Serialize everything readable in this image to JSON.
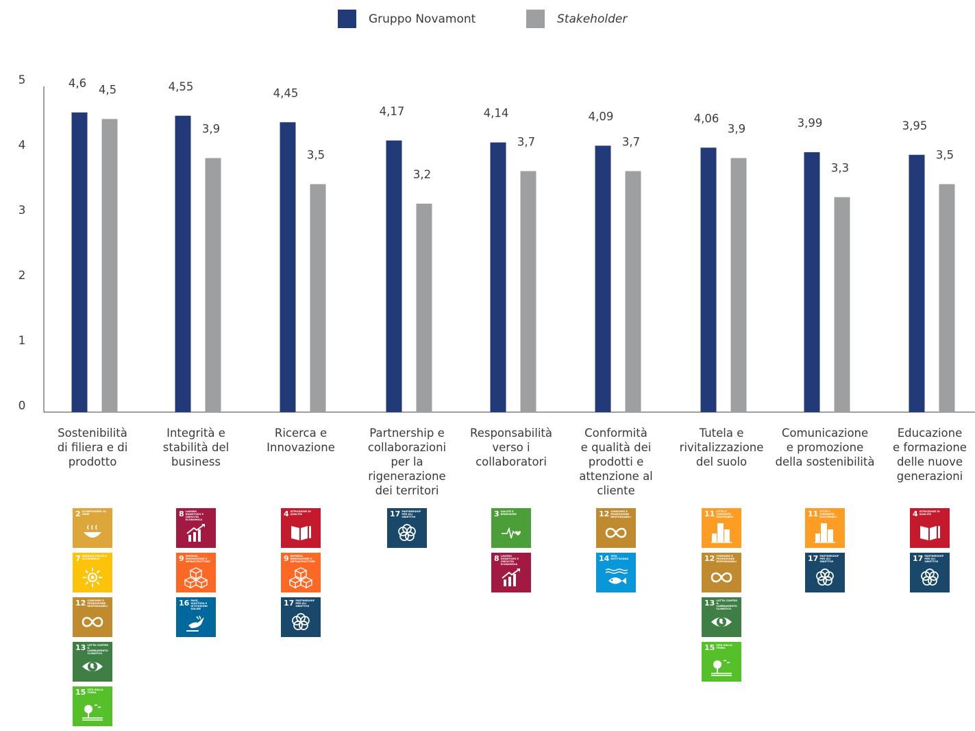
{
  "legend": [
    {
      "name": "Gruppo Novamont",
      "color": "#233a78",
      "italic": false
    },
    {
      "name": "Stakeholder",
      "color": "#9d9fa1",
      "italic": true
    }
  ],
  "chart_data": {
    "type": "bar",
    "title": "",
    "xlabel": "",
    "ylabel": "",
    "ylim": [
      0,
      5
    ],
    "yticks": [
      "0",
      "1",
      "2",
      "3",
      "4",
      "5"
    ],
    "grid": false,
    "legend_position": "top-center",
    "categories": [
      "Sostenibilità di filiera e di prodotto",
      "Integrità e stabilità del business",
      "Ricerca e Innovazione",
      "Partnership e collaborazioni per la rigenerazione dei territori",
      "Responsabilità verso i collaboratori",
      "Conformità e qualità dei prodotti e attenzione al cliente",
      "Tutela e rivitalizzazione del suolo",
      "Comunicazione e promozione della sostenibilità",
      "Educazione e formazione delle nuove generazioni"
    ],
    "category_lines": [
      [
        "Sostenibilità",
        "di filiera e di",
        "prodotto"
      ],
      [
        "Integrità e",
        "stabilità del",
        "business"
      ],
      [
        "Ricerca e",
        "Innovazione"
      ],
      [
        "Partnership e",
        "collaborazioni",
        "per la",
        "rigenerazione",
        "dei territori"
      ],
      [
        "Responsabilità",
        "verso i",
        "collaboratori"
      ],
      [
        "Conformità",
        "e qualità dei",
        "prodotti e",
        "attenzione al",
        "cliente"
      ],
      [
        "Tutela e",
        "rivitalizzazione",
        "del suolo"
      ],
      [
        "Comunicazione",
        "e promozione",
        "della sostenibilità"
      ],
      [
        "Educazione",
        "e formazione",
        "delle nuove",
        "generazioni"
      ]
    ],
    "series": [
      {
        "name": "Gruppo Novamont",
        "color": "#233a78",
        "values": [
          4.6,
          4.55,
          4.45,
          4.17,
          4.14,
          4.09,
          4.06,
          3.99,
          3.95
        ],
        "labels": [
          "4,6",
          "4,55",
          "4,45",
          "4,17",
          "4,14",
          "4,09",
          "4,06",
          "3,99",
          "3,95"
        ]
      },
      {
        "name": "Stakeholder",
        "color": "#9d9fa1",
        "values": [
          4.5,
          3.9,
          3.5,
          3.2,
          3.7,
          3.7,
          3.9,
          3.3,
          3.5
        ],
        "labels": [
          "4,5",
          "3,9",
          "3,5",
          "3,2",
          "3,7",
          "3,7",
          "3,9",
          "3,3",
          "3,5"
        ]
      }
    ]
  },
  "sdg_goals": {
    "2": {
      "number": "2",
      "title": "Sconfiggere la fame",
      "color": "#dda63a",
      "icon": "bowl-icon"
    },
    "3": {
      "number": "3",
      "title": "Salute e benessere",
      "color": "#4c9f38",
      "icon": "heartbeat-icon"
    },
    "4": {
      "number": "4",
      "title": "Istruzione di qualità",
      "color": "#c5192d",
      "icon": "book-icon"
    },
    "7": {
      "number": "7",
      "title": "Energia pulita e accessibile",
      "color": "#fcc30b",
      "icon": "sun-icon"
    },
    "8": {
      "number": "8",
      "title": "Lavoro dignitoso e crescita economica",
      "color": "#a21942",
      "icon": "growth-chart-icon"
    },
    "9": {
      "number": "9",
      "title": "Imprese, innovazione e infrastrutture",
      "color": "#fd6925",
      "icon": "cubes-icon"
    },
    "11": {
      "number": "11",
      "title": "Città e comunità sostenibili",
      "color": "#fd9d24",
      "icon": "city-icon"
    },
    "12": {
      "number": "12",
      "title": "Consumo e produzione responsabili",
      "color": "#bf8b2e",
      "icon": "infinity-icon"
    },
    "13": {
      "number": "13",
      "title": "Lotta contro il cambiamento climatico",
      "color": "#3f7e44",
      "icon": "eye-globe-icon"
    },
    "14": {
      "number": "14",
      "title": "Vita sott'acqua",
      "color": "#0a97d9",
      "icon": "fish-icon"
    },
    "15": {
      "number": "15",
      "title": "Vita sulla terra",
      "color": "#56c02b",
      "icon": "tree-icon"
    },
    "16": {
      "number": "16",
      "title": "Pace, giustizia e istituzioni solide",
      "color": "#00689d",
      "icon": "dove-icon"
    },
    "17": {
      "number": "17",
      "title": "Partnership per gli obiettivi",
      "color": "#19486a",
      "icon": "rings-icon"
    }
  },
  "sdg_by_category": [
    [
      "2",
      "7",
      "12",
      "13",
      "15"
    ],
    [
      "8",
      "9",
      "16"
    ],
    [
      "4",
      "9",
      "17"
    ],
    [
      "17"
    ],
    [
      "3",
      "8"
    ],
    [
      "12",
      "14"
    ],
    [
      "11",
      "12",
      "13",
      "15"
    ],
    [
      "11",
      "17"
    ],
    [
      "4",
      "17"
    ]
  ]
}
